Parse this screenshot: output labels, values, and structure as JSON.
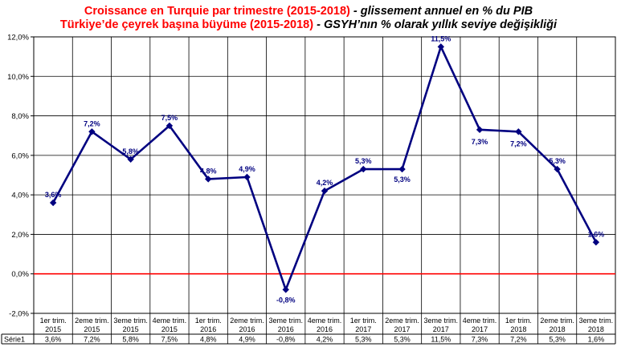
{
  "titles": {
    "line1_main": "Croissance en Turquie par trimestre (2015-2018)",
    "line1_sub": " - glissement annuel en % du PIB",
    "line2_main": "Türkiye’de çeyrek başına büyüme (2015-2018)",
    "line2_sub": " - GSYH’nın % olarak yıllık seviye değişikliği"
  },
  "chart_data": {
    "type": "line",
    "categories": [
      [
        "1er trim.",
        "2015"
      ],
      [
        "2eme trim.",
        "2015"
      ],
      [
        "3eme trim.",
        "2015"
      ],
      [
        "4eme trim.",
        "2015"
      ],
      [
        "1er trim.",
        "2016"
      ],
      [
        "2eme trim.",
        "2016"
      ],
      [
        "3eme trim.",
        "2016"
      ],
      [
        "4eme trim.",
        "2016"
      ],
      [
        "1er trim.",
        "2017"
      ],
      [
        "2eme trim.",
        "2017"
      ],
      [
        "3eme trim.",
        "2017"
      ],
      [
        "4eme trim.",
        "2017"
      ],
      [
        "1er trim.",
        "2018"
      ],
      [
        "2eme trim.",
        "2018"
      ],
      [
        "3eme trim.",
        "2018"
      ]
    ],
    "series": [
      {
        "name": "Série1",
        "values": [
          3.6,
          7.2,
          5.8,
          7.5,
          4.8,
          4.9,
          -0.8,
          4.2,
          5.3,
          5.3,
          11.5,
          7.3,
          7.2,
          5.3,
          1.6
        ],
        "labels": [
          "3,6%",
          "7,2%",
          "5,8%",
          "7,5%",
          "4,8%",
          "4,9%",
          "-0,8%",
          "4,2%",
          "5,3%",
          "5,3%",
          "11,5%",
          "7,3%",
          "7,2%",
          "5,3%",
          "1,6%"
        ],
        "table_values": [
          "3,6%",
          "7,2%",
          "5,8%",
          "7,5%",
          "4,8%",
          "4,9%",
          "-0,8%",
          "4,2%",
          "5,3%",
          "5,3%",
          "11,5%",
          "7,3%",
          "7,2%",
          "5,3%",
          "1,6%"
        ]
      }
    ],
    "y_ticks": [
      "12,0%",
      "10,0%",
      "8,0%",
      "6,0%",
      "4,0%",
      "2,0%",
      "0,0%",
      "-2,0%"
    ],
    "ylim": [
      -2,
      12
    ],
    "grid": true,
    "zero_line": true,
    "data_table": true,
    "colors": {
      "line": "#000080",
      "zero": "#ff0000",
      "grid": "#000000",
      "label": "#000080"
    }
  }
}
